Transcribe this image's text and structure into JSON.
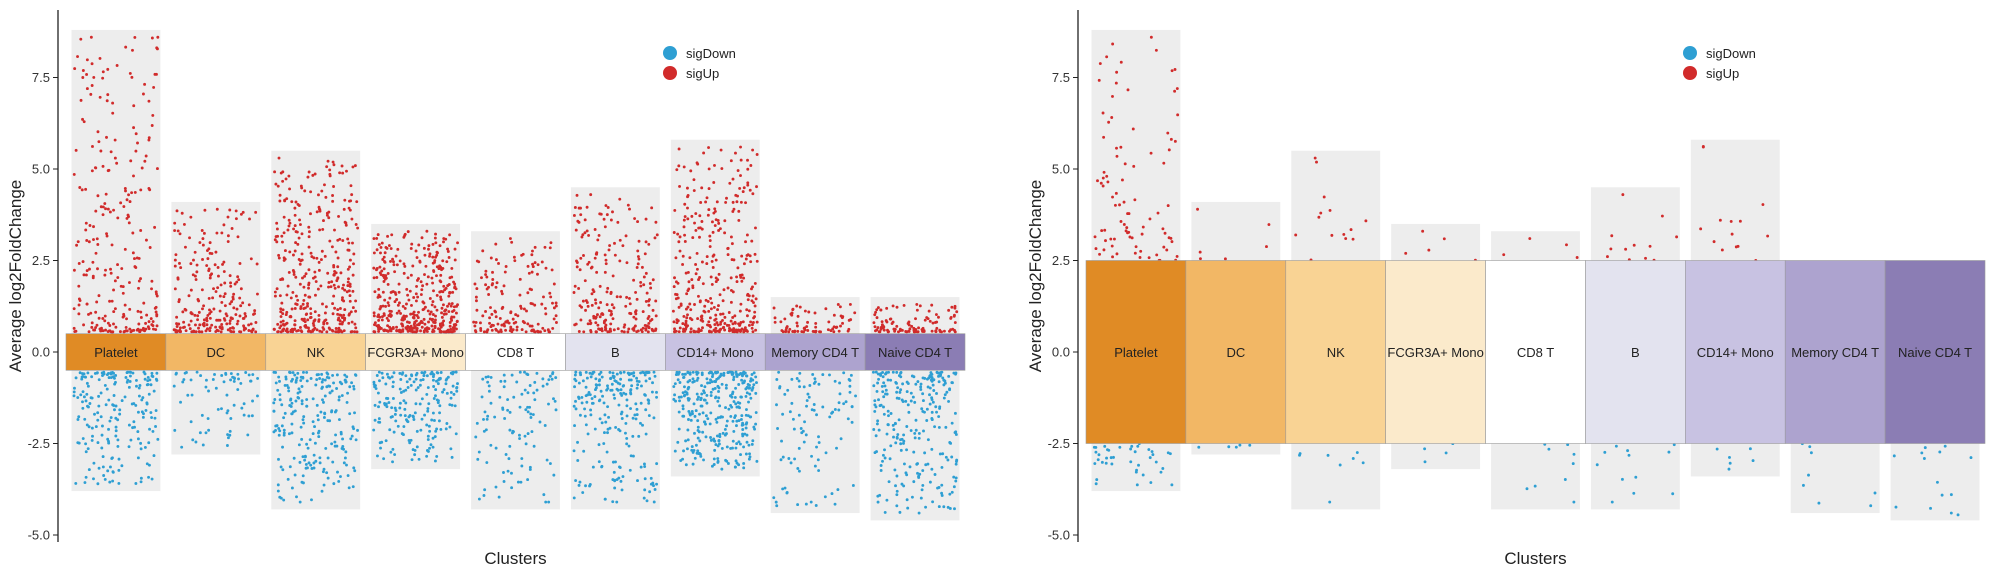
{
  "colors": {
    "sigDown": "#2e9fd3",
    "sigUp": "#d12b2b",
    "panel_bg": "#ededed",
    "clusters": [
      "#e08b25",
      "#f2b765",
      "#f9d394",
      "#fbeacb",
      "#ffffff",
      "#e3e3ef",
      "#c8c2e2",
      "#ada3cf",
      "#8b7db4"
    ]
  },
  "chart_data": [
    {
      "type": "scatter",
      "variant": "jitter-volcano",
      "xlabel": "Clusters",
      "ylabel": "Average log2FoldChange",
      "ylim": [
        -5.0,
        8.8
      ],
      "yticks": [
        "-5.0",
        "-2.5",
        "0.0",
        "2.5",
        "5.0",
        "7.5"
      ],
      "legend": {
        "position": "top-right",
        "entries": [
          "sigDown",
          "sigUp"
        ]
      },
      "label_band": [
        -0.5,
        0.5
      ],
      "categories": [
        "Platelet",
        "DC",
        "NK",
        "FCGR3A+ Mono",
        "CD8 T",
        "B",
        "CD14+ Mono",
        "Memory CD4 T",
        "Naive CD4 T"
      ],
      "up_max": [
        8.8,
        4.1,
        5.5,
        3.5,
        3.3,
        4.5,
        5.8,
        1.5,
        1.5
      ],
      "down_min": [
        -3.8,
        -2.8,
        -4.3,
        -3.2,
        -4.3,
        -4.3,
        -3.4,
        -4.4,
        -4.6
      ],
      "up_counts": [
        260,
        230,
        380,
        400,
        160,
        220,
        350,
        70,
        110
      ],
      "down_counts": [
        200,
        70,
        230,
        200,
        110,
        230,
        330,
        100,
        260
      ]
    },
    {
      "type": "scatter",
      "variant": "jitter-volcano",
      "xlabel": "Clusters",
      "ylabel": "Average log2FoldChange",
      "ylim": [
        -5.0,
        8.8
      ],
      "yticks": [
        "-5.0",
        "-2.5",
        "0.0",
        "2.5",
        "5.0",
        "7.5"
      ],
      "legend": {
        "position": "top-right",
        "entries": [
          "sigDown",
          "sigUp"
        ]
      },
      "label_band": [
        -2.5,
        2.5
      ],
      "categories": [
        "Platelet",
        "DC",
        "NK",
        "FCGR3A+ Mono",
        "CD8 T",
        "B",
        "CD14+ Mono",
        "Memory CD4 T",
        "Naive CD4 T"
      ],
      "up_max": [
        8.8,
        4.1,
        5.5,
        3.5,
        3.3,
        4.5,
        5.8,
        1.5,
        1.5
      ],
      "down_min": [
        -3.8,
        -2.8,
        -4.3,
        -3.2,
        -4.3,
        -4.3,
        -3.4,
        -4.4,
        -4.6
      ],
      "up_counts": [
        90,
        6,
        14,
        5,
        4,
        12,
        14,
        0,
        0
      ],
      "down_counts": [
        40,
        5,
        8,
        4,
        9,
        12,
        6,
        8,
        14
      ]
    }
  ]
}
